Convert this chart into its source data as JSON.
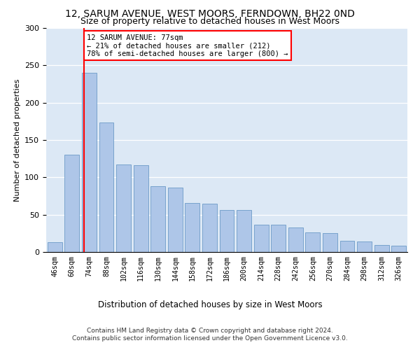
{
  "title1": "12, SARUM AVENUE, WEST MOORS, FERNDOWN, BH22 0ND",
  "title2": "Size of property relative to detached houses in West Moors",
  "xlabel": "Distribution of detached houses by size in West Moors",
  "ylabel": "Number of detached properties",
  "bar_labels": [
    "46sqm",
    "60sqm",
    "74sqm",
    "88sqm",
    "102sqm",
    "116sqm",
    "130sqm",
    "144sqm",
    "158sqm",
    "172sqm",
    "186sqm",
    "200sqm",
    "214sqm",
    "228sqm",
    "242sqm",
    "256sqm",
    "270sqm",
    "284sqm",
    "298sqm",
    "312sqm",
    "326sqm"
  ],
  "bar_values": [
    13,
    130,
    240,
    173,
    117,
    116,
    88,
    86,
    66,
    65,
    56,
    56,
    37,
    37,
    33,
    26,
    25,
    15,
    14,
    9,
    8
  ],
  "bar_color": "#aec6e8",
  "bar_edge_color": "#5a8fc0",
  "vline_color": "red",
  "annotation_text": "12 SARUM AVENUE: 77sqm\n← 21% of detached houses are smaller (212)\n78% of semi-detached houses are larger (800) →",
  "annotation_box_color": "white",
  "annotation_box_edge": "red",
  "bg_color": "#dce8f5",
  "footer1": "Contains HM Land Registry data © Crown copyright and database right 2024.",
  "footer2": "Contains public sector information licensed under the Open Government Licence v3.0.",
  "ylim": [
    0,
    300
  ],
  "title1_fontsize": 10,
  "title2_fontsize": 9,
  "xlabel_fontsize": 8.5,
  "ylabel_fontsize": 8
}
